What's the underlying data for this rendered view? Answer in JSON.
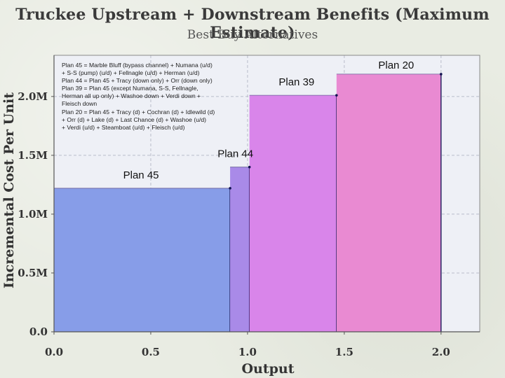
{
  "chart_data": {
    "type": "bar",
    "title": "Truckee Upstream + Downstream Benefits (Maximum Estimate)",
    "subtitle": "Best Buy Alternatives",
    "xlabel": "Output",
    "ylabel": "Incremental Cost Per Unit",
    "xlim": [
      0,
      2.2
    ],
    "ylim": [
      0,
      2.35
    ],
    "x_ticks": [
      {
        "value": 0,
        "label": "0.0"
      },
      {
        "value": 0.5,
        "label": "0.5"
      },
      {
        "value": 1.0,
        "label": "1.0"
      },
      {
        "value": 1.5,
        "label": "1.5"
      },
      {
        "value": 2.0,
        "label": "2.0"
      }
    ],
    "y_ticks": [
      {
        "value": 0,
        "label": "0.0"
      },
      {
        "value": 0.5,
        "label": "0.5M"
      },
      {
        "value": 1.0,
        "label": "1.0M"
      },
      {
        "value": 1.5,
        "label": "1.5M"
      },
      {
        "value": 2.0,
        "label": "2.0M"
      }
    ],
    "grid": true,
    "bars": [
      {
        "label": "Plan 45",
        "x0": 0.0,
        "x1": 0.91,
        "value": 1.22,
        "color": "#879de8"
      },
      {
        "label": "Plan 44",
        "x0": 0.91,
        "x1": 1.01,
        "value": 1.4,
        "color": "#a98ae8"
      },
      {
        "label": "Plan 39",
        "x0": 1.01,
        "x1": 1.46,
        "value": 2.01,
        "color": "#d985ea"
      },
      {
        "label": "Plan 20",
        "x0": 1.46,
        "x1": 2.0,
        "value": 2.19,
        "color": "#e98ad2"
      }
    ],
    "annotation_lines": [
      "Plan 45 = Marble Bluff (bypass channel) + Numana (u/d)",
      "+ S-S (pump) (u/d) + Fellnagle (u/d) + Herman (u/d)",
      "Plan 44 = Plan 45 + Tracy (down only) + Orr (down only)",
      "Plan 39 = Plan 45 (except Numana, S-S, Fellnagle,",
      "Herman all up only) + Washoe down + Verdi down +",
      "Fleisch down",
      "Plan 20 = Plan 45 + Tracy (d) + Cochran (d) + Idlewild (d)",
      "+ Orr (d) + Lake (d) + Last Chance (d) + Washoe (u/d)",
      "+ Verdi (u/d) + Steamboat (u/d) + Fleisch (u/d)"
    ]
  }
}
